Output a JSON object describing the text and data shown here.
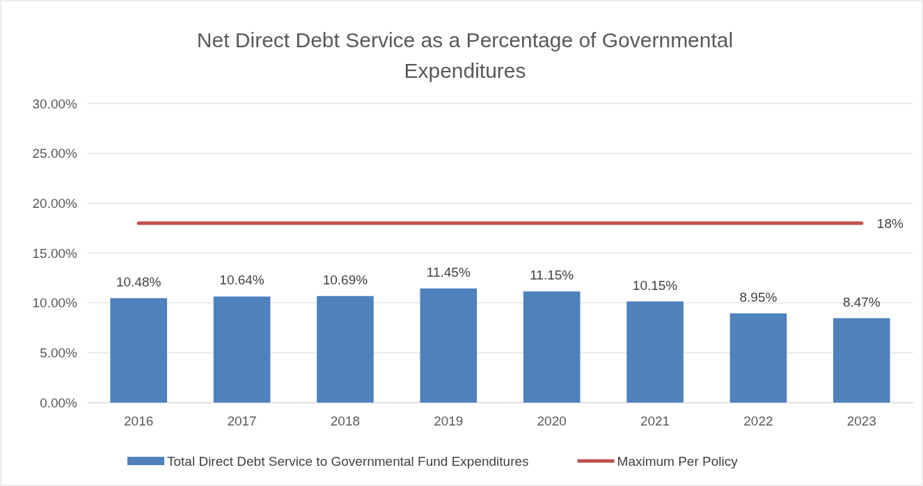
{
  "chart_data": {
    "type": "bar",
    "title": "Net Direct Debt Service as a Percentage of Governmental Expenditures",
    "categories": [
      "2016",
      "2017",
      "2018",
      "2019",
      "2020",
      "2021",
      "2022",
      "2023"
    ],
    "series": [
      {
        "name": "Total  Direct Debt Service to Governmental Fund Expenditures",
        "color": "#4f81bd",
        "values": [
          10.48,
          10.64,
          10.69,
          11.45,
          11.15,
          10.15,
          8.95,
          8.47
        ],
        "value_labels": [
          "10.48%",
          "10.64%",
          "10.69%",
          "11.45%",
          "11.15%",
          "10.15%",
          "8.95%",
          "8.47%"
        ]
      },
      {
        "name": "Maximum  Per Policy",
        "type": "line",
        "color": "#c0504d",
        "values": [
          18,
          18,
          18,
          18,
          18,
          18,
          18,
          18
        ],
        "value_labels": [
          null,
          null,
          null,
          null,
          null,
          null,
          null,
          "18%"
        ]
      }
    ],
    "ylim": [
      0,
      30
    ],
    "yticks": [
      {
        "value": 0,
        "label": "0.00%"
      },
      {
        "value": 5,
        "label": "5.00%"
      },
      {
        "value": 10,
        "label": "10.00%"
      },
      {
        "value": 15,
        "label": "15.00%"
      },
      {
        "value": 20,
        "label": "20.00%"
      },
      {
        "value": 25,
        "label": "25.00%"
      },
      {
        "value": 30,
        "label": "30.00%"
      }
    ],
    "grid": "y",
    "legend": "bottom",
    "marker": "none",
    "line_style": "solid"
  }
}
